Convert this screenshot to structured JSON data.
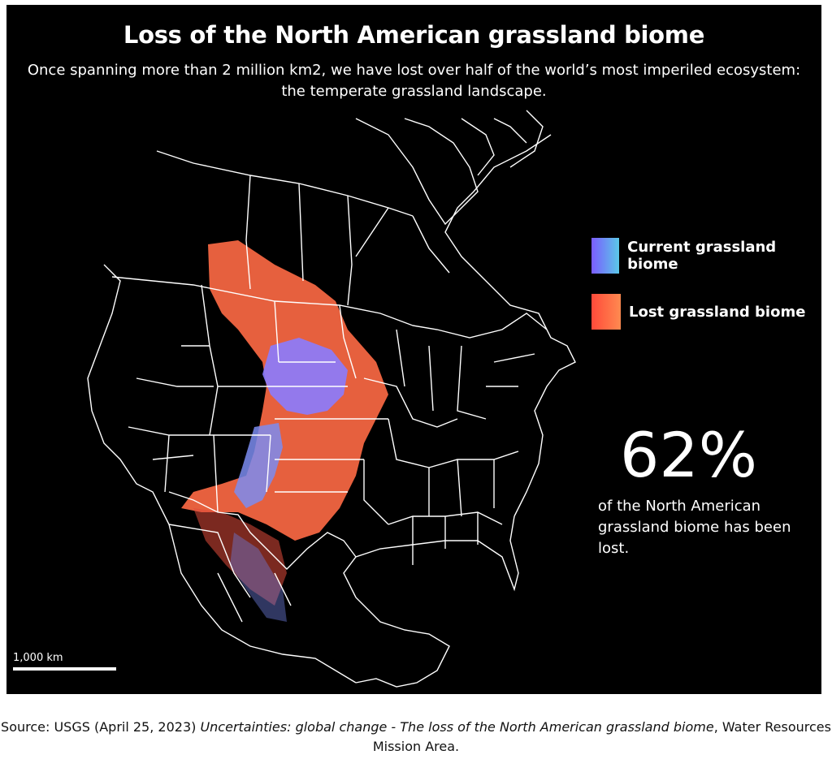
{
  "title": "Loss of the North American grassland biome",
  "subtitle": "Once spanning more than 2 million km2, we have lost over half of the world’s most imperiled ecosystem: the temperate grassland landscape.",
  "legend": {
    "current_label": "Current grassland biome",
    "lost_label": "Lost grassland biome",
    "current_colors": [
      "#7b5cff",
      "#5bc8e8"
    ],
    "lost_colors": [
      "#ff4a3a",
      "#ff8a50"
    ]
  },
  "stat": {
    "value": "62%",
    "caption": "of the North American grassland biome has been lost."
  },
  "scale": {
    "label": "1,000 km"
  },
  "source": {
    "prefix": "Source: USGS  (April 25, 2023) ",
    "work_title": "Uncertainties: global change - The loss of the North American grassland biome",
    "suffix": ", Water Resources Mission Area."
  },
  "colors": {
    "background": "#000000",
    "boundary": "#ffffff"
  }
}
